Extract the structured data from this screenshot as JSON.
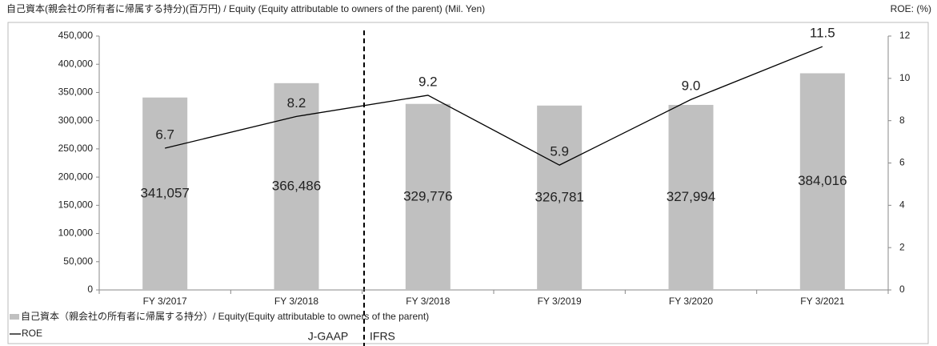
{
  "chart_data": {
    "type": "bar_line",
    "title": "自己資本(親会社の所有者に帰属する持分)(百万円) / Equity (Equity attributable to owners of the parent) (Mil. Yen)",
    "y2_title": "ROE: (%)",
    "categories": [
      "FY 3/2017",
      "FY 3/2018",
      "FY 3/2018",
      "FY 3/2019",
      "FY 3/2020",
      "FY 3/2021"
    ],
    "series": [
      {
        "name": "自己資本（親会社の所有者に帰属する持分）/ Equity(Equity attributable to owners of the parent)",
        "color": "#c0c0c0",
        "values": [
          341057,
          366486,
          329776,
          326781,
          327994,
          384016
        ],
        "value_labels": [
          "341,057",
          "366,486",
          "329,776",
          "326,781",
          "327,994",
          "384,016"
        ]
      },
      {
        "name": "ROE",
        "color": "#000000",
        "axis": "y2",
        "values": [
          6.7,
          8.2,
          9.2,
          5.9,
          9.0,
          11.5
        ],
        "value_labels": [
          "6.7",
          "8.2",
          "9.2",
          "5.9",
          "9.0",
          "11.5"
        ]
      }
    ],
    "annotations": [
      "J-GAAP",
      "IFRS"
    ],
    "ylim": [
      0,
      450000
    ],
    "yticks": [
      {
        "value": 0,
        "label": "0"
      },
      {
        "value": 50000,
        "label": "50,000"
      },
      {
        "value": 100000,
        "label": "100,000"
      },
      {
        "value": 150000,
        "label": "150,000"
      },
      {
        "value": 200000,
        "label": "200,000"
      },
      {
        "value": 250000,
        "label": "250,000"
      },
      {
        "value": 300000,
        "label": "300,000"
      },
      {
        "value": 350000,
        "label": "350,000"
      },
      {
        "value": 400000,
        "label": "400,000"
      },
      {
        "value": 450000,
        "label": "450,000"
      }
    ],
    "y2lim": [
      0,
      12
    ],
    "y2ticks": [
      0,
      2,
      4,
      6,
      8,
      10,
      12
    ]
  }
}
